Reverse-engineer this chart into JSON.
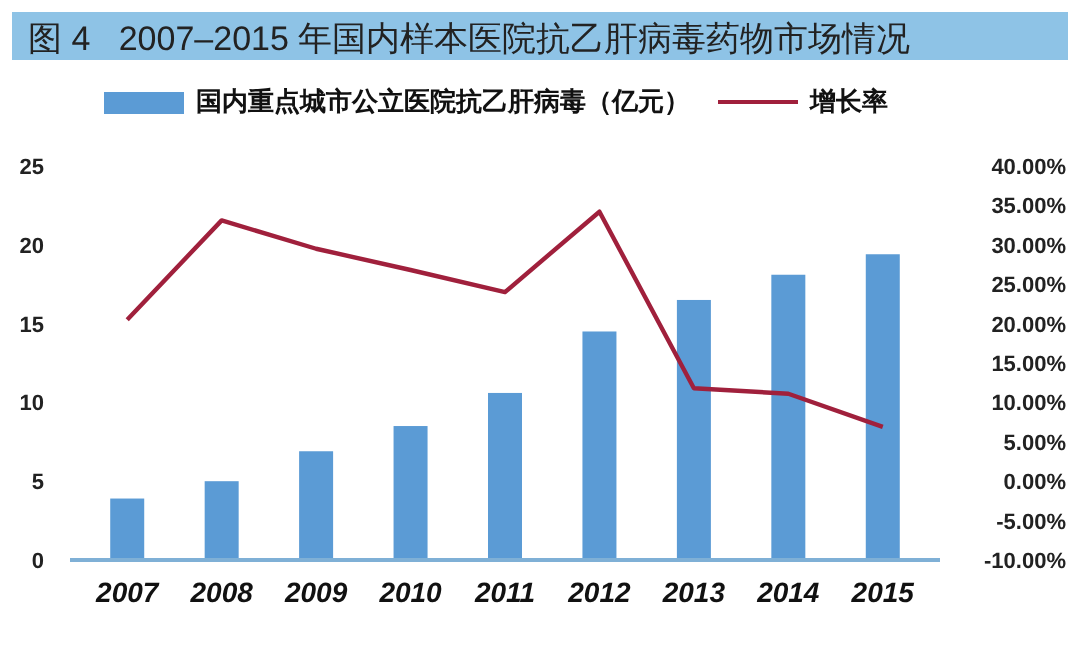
{
  "chart_data": {
    "type": "bar",
    "title": "图 4   2007–2015 年国内样本医院抗乙肝病毒药物市场情况",
    "categories": [
      "2007",
      "2008",
      "2009",
      "2010",
      "2011",
      "2012",
      "2013",
      "2014",
      "2015"
    ],
    "series": [
      {
        "name": "国内重点城市公立医院抗乙肝病毒（亿元）",
        "color": "#5b9bd5",
        "values": [
          3.9,
          5.0,
          6.9,
          8.5,
          10.6,
          14.5,
          16.5,
          18.1,
          19.4
        ]
      },
      {
        "name": "增长率",
        "type": "line",
        "axis": "y2",
        "color": "#a0203c",
        "values": [
          20.5,
          33.1,
          29.5,
          26.8,
          24.0,
          34.2,
          11.8,
          11.1,
          6.9
        ]
      }
    ],
    "ylim": [
      0,
      25
    ],
    "yticks": [
      0,
      5,
      10,
      15,
      20,
      25
    ],
    "y2lim": [
      -10,
      40
    ],
    "y2ticks": [
      {
        "value": -10,
        "label": "-10.00%"
      },
      {
        "value": -5,
        "label": "-5.00%"
      },
      {
        "value": 0,
        "label": "0.00%"
      },
      {
        "value": 5,
        "label": "5.00%"
      },
      {
        "value": 10,
        "label": "10.00%"
      },
      {
        "value": 15,
        "label": "15.00%"
      },
      {
        "value": 20,
        "label": "20.00%"
      },
      {
        "value": 25,
        "label": "25.00%"
      },
      {
        "value": 30,
        "label": "30.00%"
      },
      {
        "value": 35,
        "label": "35.00%"
      },
      {
        "value": 40,
        "label": "40.00%"
      }
    ],
    "grid": false,
    "legend": "top",
    "marker": "none",
    "line_style": "solid"
  }
}
